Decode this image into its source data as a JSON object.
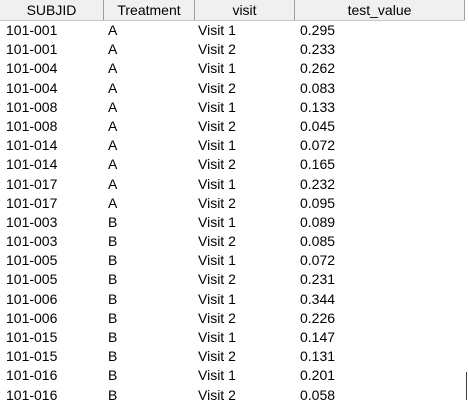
{
  "columns": [
    "SUBJID",
    "Treatment",
    "visit",
    "test_value"
  ],
  "rows": [
    [
      "101-001",
      "A",
      "Visit 1",
      "0.295"
    ],
    [
      "101-001",
      "A",
      "Visit 2",
      "0.233"
    ],
    [
      "101-004",
      "A",
      "Visit 1",
      "0.262"
    ],
    [
      "101-004",
      "A",
      "Visit 2",
      "0.083"
    ],
    [
      "101-008",
      "A",
      "Visit 1",
      "0.133"
    ],
    [
      "101-008",
      "A",
      "Visit 2",
      "0.045"
    ],
    [
      "101-014",
      "A",
      "Visit 1",
      "0.072"
    ],
    [
      "101-014",
      "A",
      "Visit 2",
      "0.165"
    ],
    [
      "101-017",
      "A",
      "Visit 1",
      "0.232"
    ],
    [
      "101-017",
      "A",
      "Visit 2",
      "0.095"
    ],
    [
      "101-003",
      "B",
      "Visit 1",
      "0.089"
    ],
    [
      "101-003",
      "B",
      "Visit 2",
      "0.085"
    ],
    [
      "101-005",
      "B",
      "Visit 1",
      "0.072"
    ],
    [
      "101-005",
      "B",
      "Visit 2",
      "0.231"
    ],
    [
      "101-006",
      "B",
      "Visit 1",
      "0.344"
    ],
    [
      "101-006",
      "B",
      "Visit 2",
      "0.226"
    ],
    [
      "101-015",
      "B",
      "Visit 1",
      "0.147"
    ],
    [
      "101-015",
      "B",
      "Visit 2",
      "0.131"
    ],
    [
      "101-016",
      "B",
      "Visit 1",
      "0.201"
    ],
    [
      "101-016",
      "B",
      "Visit 2",
      "0.058"
    ]
  ]
}
